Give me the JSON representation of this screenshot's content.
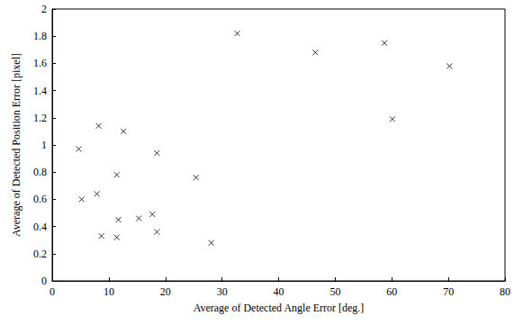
{
  "chart_data": {
    "type": "scatter",
    "x_label": "Average of Detected Angle Error [deg.]",
    "y_label": "Average of Detected Position Error [pixel]",
    "series": [
      {
        "color": "#000000",
        "marker": "x",
        "x": [
          32.7,
          46.5,
          58.7,
          70.2,
          60.1,
          4.7,
          8.2,
          12.6,
          18.5,
          25.4,
          11.4,
          7.9,
          5.2,
          11.7,
          15.3,
          17.7,
          18.5,
          28.1,
          8.7,
          11.4
        ],
        "values": [
          1.82,
          1.68,
          1.75,
          1.58,
          1.19,
          0.97,
          1.14,
          1.1,
          0.94,
          0.76,
          0.78,
          0.64,
          0.6,
          0.45,
          0.46,
          0.49,
          0.36,
          0.28,
          0.33,
          0.32
        ]
      }
    ],
    "xlim": [
      0,
      80
    ],
    "xticks": [
      0,
      10,
      20,
      30,
      40,
      50,
      60,
      70,
      80
    ],
    "ylim": [
      0,
      2
    ],
    "yticks": [
      0,
      0.2,
      0.4,
      0.6,
      0.8,
      1,
      1.2,
      1.4,
      1.6,
      1.8,
      2
    ],
    "grid": false
  }
}
